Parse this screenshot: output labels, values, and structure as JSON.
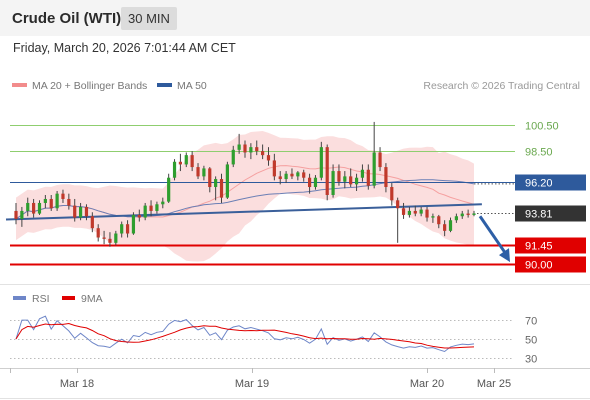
{
  "header": {
    "title": "Crude Oil (WTI)",
    "interval": "30 MIN"
  },
  "timestamp": "Friday, March 20, 2026 7:01:44 AM CET",
  "legend": {
    "items": [
      {
        "label": "MA 20 + Bollinger Bands",
        "color": "#f28c8c"
      },
      {
        "label": "MA 50",
        "color": "#2e5a9c"
      }
    ]
  },
  "copyright": "Research © 2026 Trading Central",
  "colors": {
    "bull": "#2e9e2e",
    "bear": "#c0392b",
    "band_fill": "#fbdede",
    "ma20": "#f5a0a0",
    "ma50": "#6b7fb5",
    "trendline": "#3a5f9a",
    "resistance": "#8fce6f",
    "support": "#e00000",
    "pivot": "#2e5a9c",
    "arrow": "#2e5fa6"
  },
  "chart_data": [
    {
      "type": "candlestick",
      "ylim": [
        88.5,
        102.5
      ],
      "x_ticks": [
        "Mar 18",
        "Mar 19",
        "Mar 20",
        "Mar 25"
      ],
      "price_levels": [
        {
          "label": "100.50",
          "value": 100.5,
          "kind": "resistance"
        },
        {
          "label": "98.50",
          "value": 98.5,
          "kind": "resistance"
        },
        {
          "label": "96.20",
          "value": 96.2,
          "kind": "pivot"
        },
        {
          "label": "93.81",
          "value": 93.81,
          "kind": "last"
        },
        {
          "label": "91.45",
          "value": 91.45,
          "kind": "support"
        },
        {
          "label": "90.00",
          "value": 90.0,
          "kind": "support"
        }
      ],
      "candles": [
        [
          94.0,
          94.6,
          93.0,
          93.4
        ],
        [
          93.4,
          94.3,
          92.8,
          94.0
        ],
        [
          94.0,
          95.0,
          93.6,
          94.6
        ],
        [
          94.6,
          94.9,
          93.5,
          93.8
        ],
        [
          93.8,
          94.8,
          93.7,
          94.6
        ],
        [
          94.6,
          95.2,
          94.2,
          94.9
        ],
        [
          94.9,
          95.2,
          94.0,
          94.2
        ],
        [
          94.2,
          95.5,
          94.0,
          95.3
        ],
        [
          95.3,
          95.6,
          94.6,
          94.9
        ],
        [
          94.9,
          95.3,
          94.1,
          94.4
        ],
        [
          94.4,
          94.9,
          93.2,
          93.5
        ],
        [
          93.5,
          94.6,
          93.3,
          94.3
        ],
        [
          94.3,
          94.5,
          93.3,
          93.6
        ],
        [
          93.6,
          93.9,
          92.4,
          92.7
        ],
        [
          92.7,
          93.0,
          91.7,
          92.0
        ],
        [
          92.0,
          92.5,
          91.5,
          91.9
        ],
        [
          91.9,
          92.4,
          91.3,
          91.6
        ],
        [
          91.6,
          92.5,
          91.4,
          92.3
        ],
        [
          92.3,
          93.2,
          92.0,
          93.0
        ],
        [
          93.0,
          93.3,
          92.0,
          92.3
        ],
        [
          92.3,
          93.9,
          92.2,
          93.7
        ],
        [
          93.7,
          94.1,
          93.2,
          93.5
        ],
        [
          93.5,
          94.6,
          93.3,
          94.4
        ],
        [
          94.4,
          94.8,
          93.6,
          94.0
        ],
        [
          94.0,
          94.7,
          93.8,
          94.5
        ],
        [
          94.5,
          95.0,
          94.2,
          94.7
        ],
        [
          94.7,
          96.8,
          94.6,
          96.5
        ],
        [
          96.5,
          97.9,
          96.3,
          97.7
        ],
        [
          97.7,
          98.3,
          97.0,
          97.5
        ],
        [
          97.5,
          98.4,
          97.3,
          98.2
        ],
        [
          98.2,
          98.5,
          97.0,
          97.3
        ],
        [
          97.3,
          97.6,
          96.4,
          96.6
        ],
        [
          96.6,
          97.4,
          96.3,
          97.2
        ],
        [
          97.2,
          97.3,
          95.4,
          95.8
        ],
        [
          95.8,
          96.6,
          94.8,
          96.4
        ],
        [
          96.4,
          96.8,
          94.6,
          95.0
        ],
        [
          95.0,
          97.7,
          94.9,
          97.5
        ],
        [
          97.5,
          98.9,
          97.3,
          98.6
        ],
        [
          98.6,
          99.8,
          98.3,
          99.0
        ],
        [
          99.0,
          99.3,
          98.0,
          98.4
        ],
        [
          98.4,
          99.1,
          97.9,
          98.8
        ],
        [
          98.8,
          99.3,
          98.2,
          98.5
        ],
        [
          98.5,
          99.0,
          97.9,
          98.2
        ],
        [
          98.2,
          98.8,
          97.4,
          97.8
        ],
        [
          97.8,
          98.3,
          96.3,
          96.6
        ],
        [
          96.6,
          97.0,
          96.0,
          96.4
        ],
        [
          96.4,
          97.0,
          96.1,
          96.8
        ],
        [
          96.8,
          97.2,
          96.4,
          96.6
        ],
        [
          96.6,
          97.0,
          96.3,
          96.9
        ],
        [
          96.9,
          97.1,
          96.2,
          96.5
        ],
        [
          96.5,
          96.8,
          95.3,
          95.8
        ],
        [
          95.8,
          96.7,
          95.6,
          96.5
        ],
        [
          96.5,
          99.2,
          96.3,
          98.8
        ],
        [
          98.8,
          99.0,
          94.8,
          95.2
        ],
        [
          95.2,
          97.5,
          95.0,
          97.0
        ],
        [
          97.0,
          97.5,
          95.9,
          96.2
        ],
        [
          96.2,
          97.0,
          95.7,
          96.6
        ],
        [
          96.6,
          97.2,
          95.8,
          96.0
        ],
        [
          96.0,
          96.8,
          95.5,
          96.5
        ],
        [
          96.5,
          97.5,
          96.2,
          97.1
        ],
        [
          97.1,
          97.5,
          95.6,
          95.9
        ],
        [
          95.9,
          100.7,
          95.7,
          98.4
        ],
        [
          98.4,
          98.8,
          97.0,
          97.3
        ],
        [
          97.3,
          97.6,
          95.4,
          95.8
        ],
        [
          95.8,
          96.1,
          94.4,
          94.8
        ],
        [
          94.8,
          95.0,
          91.6,
          94.2
        ],
        [
          94.2,
          94.6,
          93.4,
          93.7
        ],
        [
          93.7,
          94.3,
          93.5,
          94.0
        ],
        [
          94.0,
          94.4,
          93.6,
          93.8
        ],
        [
          93.8,
          94.3,
          93.6,
          94.1
        ],
        [
          94.1,
          94.3,
          93.2,
          93.5
        ],
        [
          93.5,
          93.8,
          93.1,
          93.6
        ],
        [
          93.6,
          93.7,
          92.7,
          93.0
        ],
        [
          93.0,
          93.3,
          92.1,
          92.5
        ],
        [
          92.5,
          93.5,
          92.4,
          93.3
        ],
        [
          93.3,
          93.8,
          93.1,
          93.6
        ],
        [
          93.6,
          94.0,
          93.4,
          93.8
        ],
        [
          93.8,
          94.1,
          93.5,
          93.7
        ],
        [
          93.7,
          94.0,
          93.6,
          93.81
        ]
      ],
      "trendline": [
        [
          0,
          93.4
        ],
        [
          79,
          94.5
        ]
      ],
      "projection": {
        "from": 93.6,
        "to": 90.0
      }
    },
    {
      "type": "line",
      "name": "RSI",
      "ylim": [
        15,
        85
      ],
      "y_ticks": [
        70,
        50,
        30
      ],
      "legend": [
        {
          "label": "RSI",
          "color": "#6e86c8"
        },
        {
          "label": "9MA",
          "color": "#e00000"
        }
      ]
    }
  ]
}
